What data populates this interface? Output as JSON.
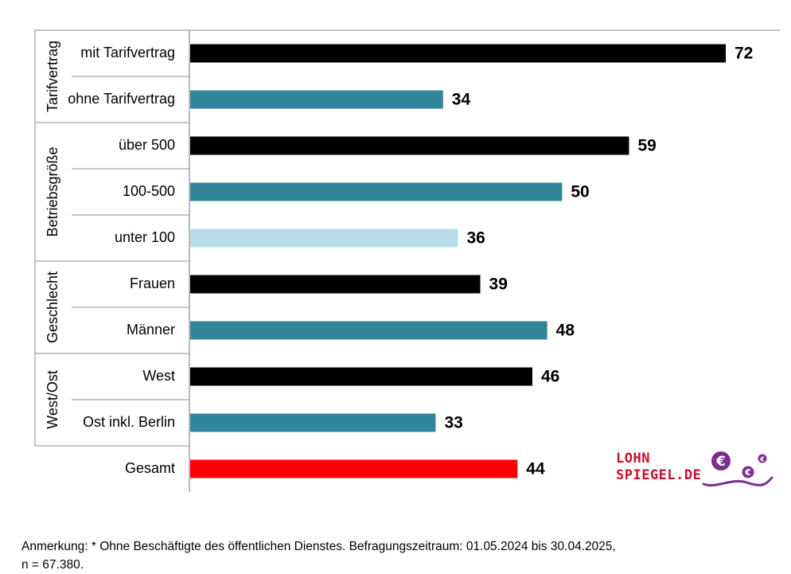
{
  "chart_data": {
    "type": "bar",
    "orientation": "horizontal",
    "groups": [
      {
        "name": "Tarifvertrag",
        "categories": [
          "mit Tarifvertrag",
          "ohne Tarifvertrag"
        ]
      },
      {
        "name": "Betriebsgröße",
        "categories": [
          "über 500",
          "100-500",
          "unter 100"
        ]
      },
      {
        "name": "Geschlecht",
        "categories": [
          "Frauen",
          "Männer"
        ]
      },
      {
        "name": "West/Ost",
        "categories": [
          "West",
          "Ost inkl. Berlin"
        ]
      },
      {
        "name": "",
        "categories": [
          "Gesamt"
        ]
      }
    ],
    "categories": [
      "mit Tarifvertrag",
      "ohne Tarifvertrag",
      "über 500",
      "100-500",
      "unter 100",
      "Frauen",
      "Männer",
      "West",
      "Ost inkl. Berlin",
      "Gesamt"
    ],
    "values": [
      72,
      34,
      59,
      50,
      36,
      39,
      48,
      46,
      33,
      44
    ],
    "bar_colors": [
      "#000000",
      "#31869b",
      "#000000",
      "#31869b",
      "#b7dee8",
      "#000000",
      "#31869b",
      "#000000",
      "#31869b",
      "#ff0000"
    ],
    "xlim": [
      0,
      72
    ],
    "title": "",
    "xlabel": "",
    "ylabel": "",
    "grid": false
  },
  "note": {
    "line1": "Anmerkung: * Ohne Beschäftigte des öffentlichen Dienstes. Befragungszeitraum: 01.05.2024 bis 30.04.2025,",
    "line2": "n = 67.380."
  },
  "logo": {
    "line1": "LOHN",
    "line2": "SPIEGEL.DE",
    "euro_symbol": "€",
    "brand_color": "#c8102e",
    "accent_color": "#7b2d8e"
  }
}
